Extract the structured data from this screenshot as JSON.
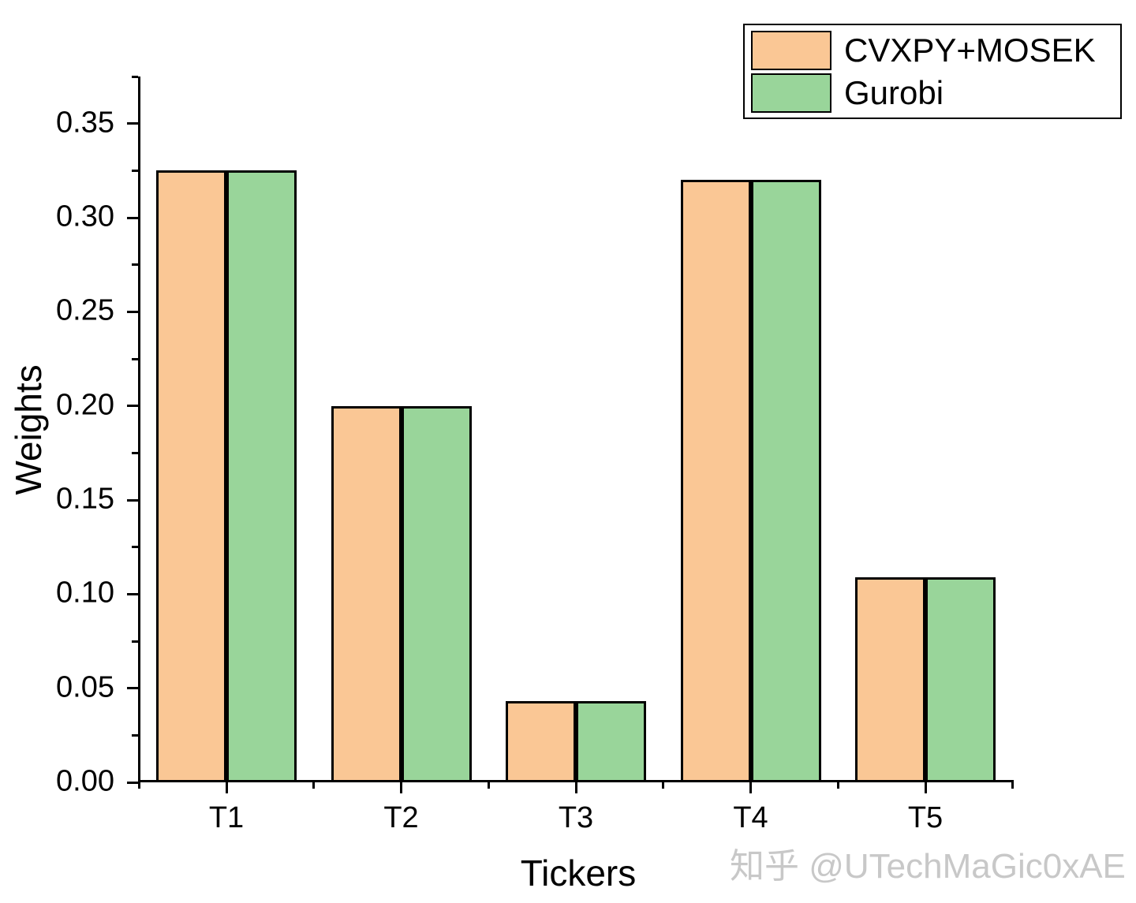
{
  "chart_data": {
    "type": "bar",
    "categories": [
      "T1",
      "T2",
      "T3",
      "T4",
      "T5"
    ],
    "series": [
      {
        "name": "CVXPY+MOSEK",
        "color": "#FAC795",
        "values": [
          0.325,
          0.2,
          0.043,
          0.32,
          0.109
        ]
      },
      {
        "name": "Gurobi",
        "color": "#99D59A",
        "values": [
          0.325,
          0.2,
          0.043,
          0.32,
          0.109
        ]
      }
    ],
    "title": "",
    "xlabel": "Tickers",
    "ylabel": "Weights",
    "ylim": [
      0,
      0.375
    ],
    "y_major_ticks": [
      "0.00",
      "0.05",
      "0.10",
      "0.15",
      "0.20",
      "0.25",
      "0.30",
      "0.35"
    ],
    "y_major_step": 0.05,
    "y_minor_step": 0.025,
    "grid": false,
    "legend_position": "top-right",
    "bar_edge_color": "#000000"
  },
  "watermark": {
    "text": "知乎 @UTechMaGic0xAE",
    "color": "#C8C8C8"
  }
}
